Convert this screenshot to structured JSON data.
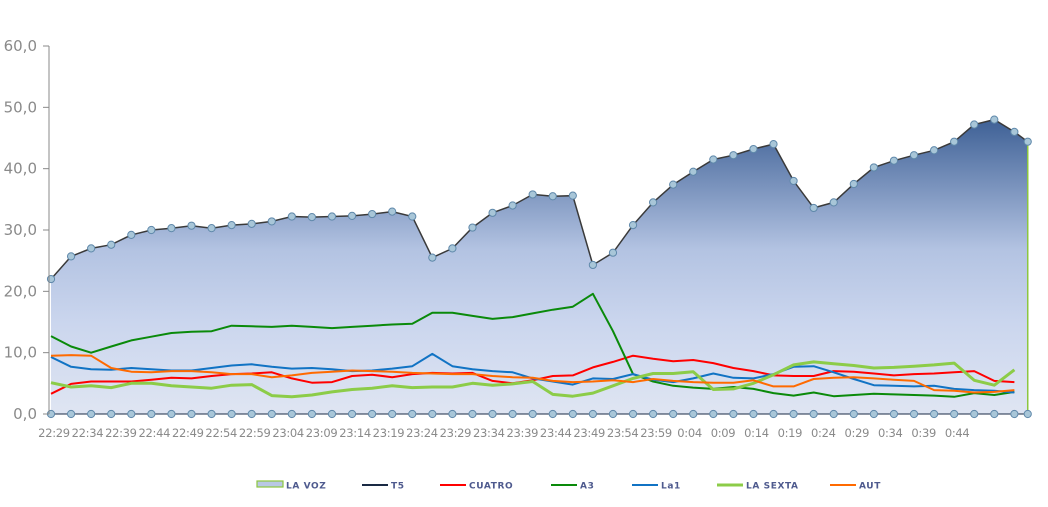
{
  "chart_data": {
    "type": "line",
    "title": "",
    "xlabel": "",
    "ylabel": "",
    "ylim": [
      0,
      60
    ],
    "y_ticks": [
      "0,0",
      "10,0",
      "20,0",
      "30,0",
      "40,0",
      "50,0",
      "60,0"
    ],
    "y_tick_values": [
      0,
      10,
      20,
      30,
      40,
      50,
      60
    ],
    "x_tick_labels": [
      "22:29",
      "22:34",
      "22:39",
      "22:44",
      "22:49",
      "22:54",
      "22:59",
      "23:04",
      "23:09",
      "23:14",
      "23:19",
      "23:24",
      "23:29",
      "23:34",
      "23:39",
      "23:44",
      "23:49",
      "23:54",
      "23:59",
      "0:04",
      "0:09",
      "0:14",
      "0:19",
      "0:24",
      "0:29",
      "0:34",
      "0:39",
      "0:44"
    ],
    "x_tick_minutes_step": 5,
    "x_minutes_from_start": [
      0,
      3,
      6,
      9,
      12,
      15,
      18,
      21,
      24,
      27,
      30,
      33,
      36,
      39,
      42,
      45,
      48,
      51,
      54,
      57,
      60,
      63,
      66,
      69,
      72,
      75,
      78,
      81,
      84,
      87,
      90,
      93,
      96,
      99,
      102,
      105,
      108,
      111,
      114,
      117,
      120,
      123,
      126,
      129,
      132,
      135,
      138,
      141,
      144,
      146
    ],
    "x_max_minutes": 146,
    "grid": false,
    "legend_position": "bottom",
    "series": [
      {
        "name": "LA VOZ",
        "kind": "area",
        "color": "#3e6196",
        "values": [
          22.0,
          25.7,
          27.0,
          27.6,
          29.2,
          30.0,
          30.3,
          30.7,
          30.3,
          30.8,
          31.0,
          31.4,
          32.2,
          32.1,
          32.2,
          32.3,
          32.6,
          33.0,
          32.2,
          25.5,
          27.0,
          30.4,
          32.8,
          34.0,
          35.8,
          35.5,
          35.6,
          24.3,
          26.3,
          30.8,
          34.5,
          37.4,
          39.5,
          41.5,
          42.2,
          43.2,
          44.0,
          38.0,
          33.6,
          34.5,
          37.5,
          40.2,
          41.3,
          42.2,
          43.0,
          44.4,
          47.2,
          48.0,
          46.0,
          44.4
        ]
      },
      {
        "name": "T5",
        "kind": "line",
        "color": "#1a2a44",
        "values": [
          0,
          0,
          0,
          0,
          0,
          0,
          0,
          0,
          0,
          0,
          0,
          0,
          0,
          0,
          0,
          0,
          0,
          0,
          0,
          0,
          0,
          0,
          0,
          0,
          0,
          0,
          0,
          0,
          0,
          0,
          0,
          0,
          0,
          0,
          0,
          0,
          0,
          0,
          0,
          0,
          0,
          0,
          0,
          0,
          0,
          0,
          0,
          0,
          0,
          0
        ]
      },
      {
        "name": "CUATRO",
        "kind": "line",
        "color": "#ff0000",
        "values": [
          3.3,
          4.9,
          5.3,
          5.3,
          5.3,
          5.6,
          5.9,
          5.8,
          6.2,
          6.5,
          6.6,
          6.8,
          5.8,
          5.1,
          5.2,
          6.2,
          6.4,
          6.0,
          6.5,
          6.7,
          6.6,
          6.7,
          5.4,
          5.0,
          5.5,
          6.2,
          6.3,
          7.6,
          8.5,
          9.5,
          9.0,
          8.6,
          8.8,
          8.3,
          7.5,
          7.0,
          6.3,
          6.2,
          6.2,
          7.0,
          6.9,
          6.6,
          6.3,
          6.5,
          6.6,
          6.8,
          7.0,
          5.4,
          5.2,
          null
        ]
      },
      {
        "name": "A3",
        "kind": "line",
        "color": "#0a8a0a",
        "values": [
          12.7,
          11.0,
          10.0,
          11.0,
          12.0,
          12.6,
          13.2,
          13.4,
          13.5,
          14.4,
          14.3,
          14.2,
          14.4,
          14.2,
          14.0,
          14.2,
          14.4,
          14.6,
          14.7,
          16.5,
          16.5,
          16.0,
          15.5,
          15.8,
          16.4,
          17.0,
          17.5,
          19.6,
          13.5,
          6.5,
          5.3,
          4.6,
          4.3,
          4.1,
          4.4,
          4.1,
          3.4,
          3.0,
          3.5,
          2.9,
          3.1,
          3.3,
          3.2,
          3.1,
          3.0,
          2.8,
          3.4,
          3.1,
          3.6,
          null
        ]
      },
      {
        "name": "La1",
        "kind": "line",
        "color": "#1173c4",
        "values": [
          9.3,
          7.7,
          7.3,
          7.2,
          7.5,
          7.3,
          7.1,
          7.1,
          7.5,
          7.9,
          8.1,
          7.7,
          7.4,
          7.5,
          7.3,
          7.0,
          7.1,
          7.4,
          7.8,
          9.8,
          7.8,
          7.3,
          7.0,
          6.8,
          5.8,
          5.3,
          4.8,
          5.8,
          5.7,
          6.5,
          5.6,
          5.2,
          5.8,
          6.6,
          5.9,
          5.8,
          6.5,
          7.7,
          7.8,
          6.8,
          5.7,
          4.7,
          4.6,
          4.5,
          4.6,
          4.1,
          3.9,
          3.8,
          3.5,
          null
        ]
      },
      {
        "name": "LA SEXTA",
        "kind": "line",
        "color": "#8ccc48",
        "values": [
          5.1,
          4.4,
          4.6,
          4.3,
          5.0,
          5.0,
          4.6,
          4.4,
          4.2,
          4.7,
          4.8,
          3.0,
          2.8,
          3.1,
          3.6,
          4.0,
          4.2,
          4.6,
          4.3,
          4.4,
          4.4,
          5.0,
          4.7,
          4.9,
          5.3,
          3.2,
          2.9,
          3.4,
          4.6,
          5.8,
          6.6,
          6.6,
          6.9,
          4.0,
          4.1,
          5.0,
          6.4,
          8.0,
          8.5,
          8.2,
          7.9,
          7.5,
          7.6,
          7.8,
          8.0,
          8.3,
          5.5,
          4.7,
          7.2,
          null
        ]
      },
      {
        "name": "AUT",
        "kind": "line",
        "color": "#ff6a00",
        "values": [
          9.5,
          9.6,
          9.5,
          7.5,
          6.9,
          6.8,
          7.0,
          7.0,
          6.8,
          6.5,
          6.5,
          6.0,
          6.3,
          6.7,
          6.9,
          7.1,
          7.0,
          6.9,
          6.7,
          6.6,
          6.5,
          6.5,
          6.2,
          6.0,
          5.9,
          5.4,
          5.2,
          5.3,
          5.5,
          5.2,
          5.7,
          5.4,
          5.2,
          5.1,
          5.1,
          5.5,
          4.5,
          4.5,
          5.7,
          5.9,
          6.0,
          5.8,
          5.6,
          5.4,
          3.9,
          3.8,
          3.5,
          3.6,
          3.9,
          null
        ]
      }
    ]
  }
}
